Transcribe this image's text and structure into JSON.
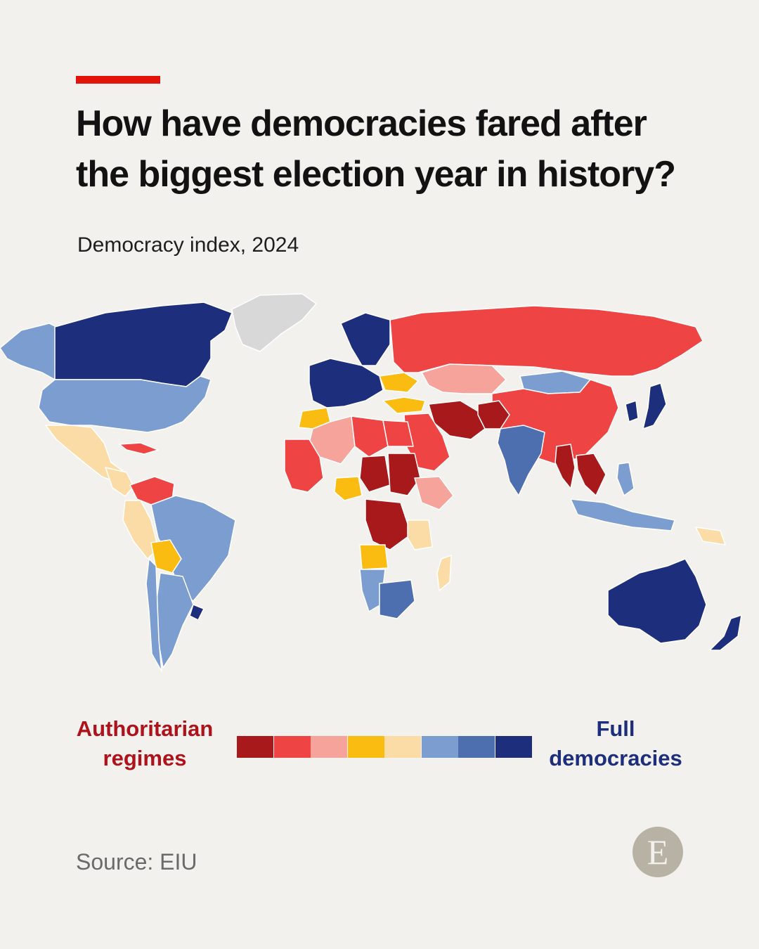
{
  "header": {
    "accent_color": "#e3120b",
    "title_lines": [
      "How have democracies fared after",
      "the biggest election year in history?"
    ],
    "subtitle": "Democracy index, 2024"
  },
  "map": {
    "type": "choropleth world map",
    "no_data_color": "#d8d8d8",
    "scale_colors": [
      "#a8191c",
      "#ee4443",
      "#f6a39b",
      "#fbbc12",
      "#fbdca6",
      "#7c9dd0",
      "#4d6faf",
      "#1d2e7c"
    ],
    "regions": {
      "North America": {
        "USA": "#7c9dd0",
        "Canada": "#1d2e7c",
        "Alaska": "#7c9dd0",
        "Mexico": "#fbdca6",
        "Greenland": "no data"
      },
      "South America": {
        "Brazil": "#7c9dd0",
        "Argentina": "#7c9dd0",
        "Chile": "#7c9dd0",
        "Uruguay": "#1d2e7c",
        "Venezuela": "#ee4443",
        "Bolivia": "#fbbc12",
        "Peru": "#fbdca6"
      },
      "Europe": {
        "Western Europe": "#1d2e7c",
        "Scandinavia": "#1d2e7c",
        "Ukraine": "#fbbc12",
        "Turkey": "#fbbc12",
        "Belarus": "#a8191c"
      },
      "Asia": {
        "Russia": "#ee4443",
        "China": "#ee4443",
        "Mongolia": "#7c9dd0",
        "India": "#4d6faf",
        "Kazakhstan": "#f6a39b",
        "Iran": "#a8191c",
        "Afghanistan": "#a8191c",
        "Japan": "#1d2e7c",
        "Myanmar": "#a8191c",
        "Indonesia": "#7c9dd0"
      },
      "Africa": {
        "Algeria": "#f6a39b",
        "Libya": "#ee4443",
        "Egypt": "#ee4443",
        "Sudan": "#a8191c",
        "DR Congo": "#a8191c",
        "Chad": "#a8191c",
        "Nigeria": "#fbbc12",
        "Angola": "#fbbc12",
        "South Africa": "#4d6faf",
        "Namibia": "#7c9dd0",
        "Morocco": "#fbbc12",
        "Ethiopia": "#f6a39b",
        "Madagascar": "#fbdca6",
        "Tanzania": "#fbdca6"
      },
      "Oceania": {
        "Australia": "#1d2e7c",
        "New Zealand": "#1d2e7c",
        "Papua New Guinea": "#fbdca6"
      }
    }
  },
  "legend": {
    "left_lines": [
      "Authoritarian",
      "regimes"
    ],
    "left_color": "#b0121b",
    "right_lines": [
      "Full",
      "democracies"
    ],
    "right_color": "#1d2e7c"
  },
  "footer": {
    "source": "Source: EIU",
    "logo_letter": "E"
  }
}
